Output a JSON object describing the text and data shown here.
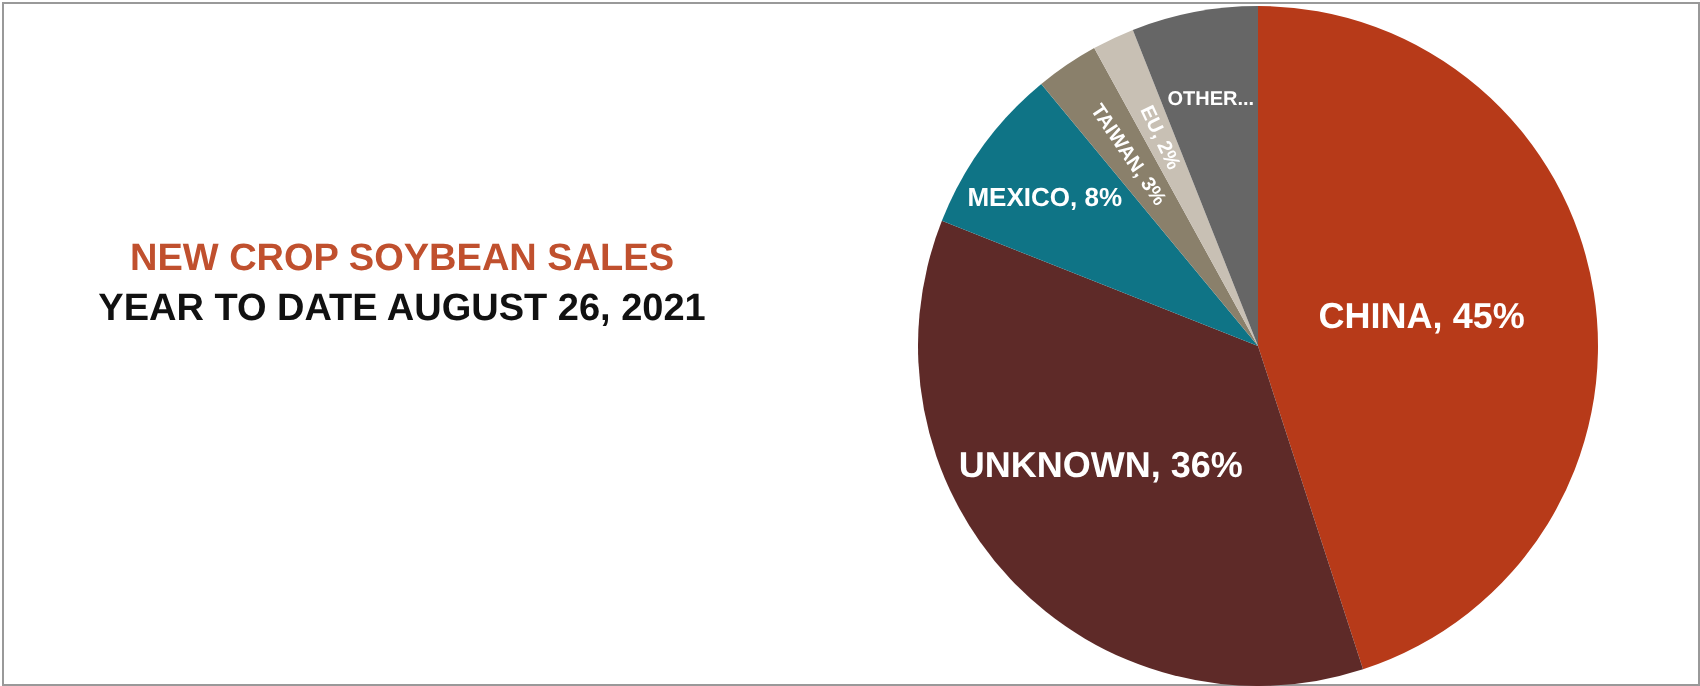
{
  "chart_data": {
    "type": "pie",
    "title": "NEW CROP SOYBEAN SALES",
    "subtitle": "YEAR TO DATE AUGUST 26, 2021",
    "categories": [
      "CHINA",
      "UNKNOWN",
      "MEXICO",
      "TAIWAN",
      "EU",
      "OTHER..."
    ],
    "values": [
      45,
      36,
      8,
      3,
      2,
      6
    ],
    "colors": [
      "#b73a19",
      "#5e2a28",
      "#0f7486",
      "#8a806b",
      "#c8c0b4",
      "#666666"
    ],
    "value_labels": [
      ", 45%",
      ", 36%",
      ", 8%",
      ", 3%",
      ", 2%",
      null
    ]
  }
}
